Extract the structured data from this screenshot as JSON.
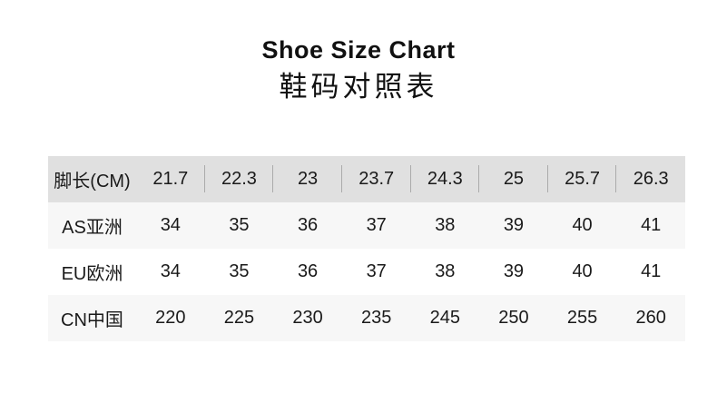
{
  "chart_data": {
    "type": "table",
    "title": "Shoe Size Chart",
    "subtitle": "鞋码对照表",
    "columns": [
      "脚长(CM)",
      "21.7",
      "22.3",
      "23",
      "23.7",
      "24.3",
      "25",
      "25.7",
      "26.3"
    ],
    "rows": [
      [
        "AS亚洲",
        "34",
        "35",
        "36",
        "37",
        "38",
        "39",
        "40",
        "41"
      ],
      [
        "EU欧洲",
        "34",
        "35",
        "36",
        "37",
        "38",
        "39",
        "40",
        "41"
      ],
      [
        "CN中国",
        "220",
        "225",
        "230",
        "235",
        "245",
        "250",
        "255",
        "260"
      ]
    ],
    "layout": {
      "header_background": "#e0e0e0",
      "stripe_background": "#f7f7f7",
      "plain_background": "#ffffff",
      "divider_color": "#ababab",
      "text_color": "#1a1a1a",
      "grid": "header dividers only, no outer border"
    }
  },
  "colors": {
    "page_background": "#ffffff",
    "title_text": "#111111"
  }
}
